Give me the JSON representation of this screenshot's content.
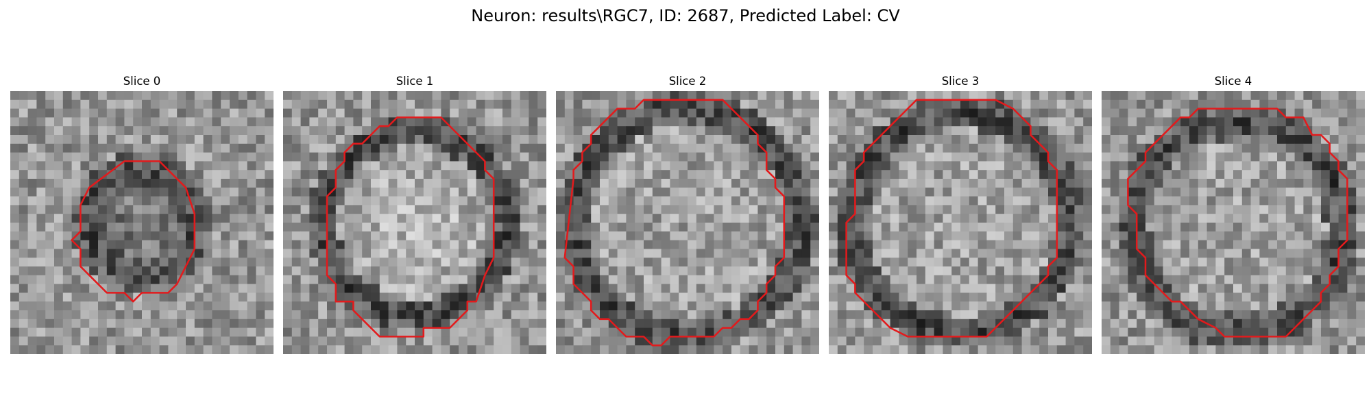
{
  "figure": {
    "title": "Neuron: results\\RGC7, ID: 2687, Predicted Label: CV"
  },
  "panels": [
    {
      "title": "Slice 0",
      "cell_radius": 6,
      "cell_cx": 15,
      "cell_cy": 15,
      "ring_width": 2.2,
      "interior": "mixed-dark",
      "seed": 11
    },
    {
      "title": "Slice 1",
      "cell_radius": 10.5,
      "cell_cx": 15,
      "cell_cy": 15,
      "ring_width": 1.8,
      "interior": "bright",
      "seed": 23
    },
    {
      "title": "Slice 2",
      "cell_radius": 13,
      "cell_cx": 15,
      "cell_cy": 15,
      "ring_width": 1.8,
      "interior": "mid",
      "seed": 37
    },
    {
      "title": "Slice 3",
      "cell_radius": 12.5,
      "cell_cx": 15,
      "cell_cy": 15,
      "ring_width": 1.8,
      "interior": "mid",
      "seed": 41
    },
    {
      "title": "Slice 4",
      "cell_radius": 12,
      "cell_cx": 15.5,
      "cell_cy": 15.5,
      "ring_width": 2.0,
      "interior": "mid",
      "seed": 53
    }
  ],
  "outline_color": "#e31a1c",
  "colormap": "grayscale"
}
